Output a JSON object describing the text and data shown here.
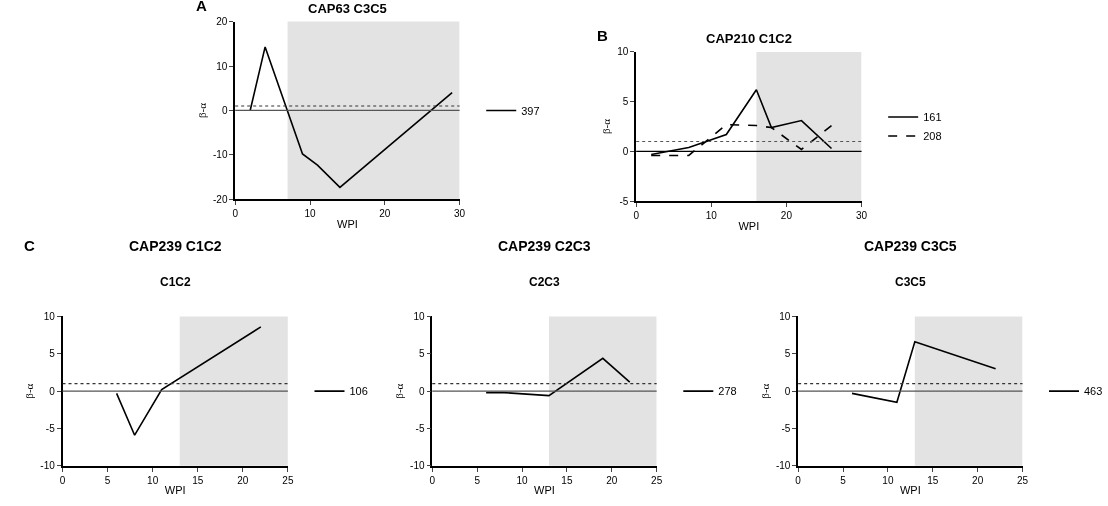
{
  "chart_data": [
    {
      "type": "line",
      "title": "CAP63 C3C5",
      "xlabel": "WPI",
      "ylabel": "β-α",
      "annotations": [
        "A"
      ],
      "series": [
        {
          "name": "397",
          "color": "#000000",
          "line_style": "solid",
          "x": [
            2,
            4,
            9,
            11,
            14,
            29
          ],
          "values": [
            0,
            14.3,
            -9.8,
            -12.3,
            -17.3,
            4
          ]
        }
      ],
      "xlim": [
        0,
        30
      ],
      "xticks": [
        0,
        10,
        20,
        30
      ],
      "ylim": [
        -20,
        20
      ],
      "yticks": [
        -20,
        -10,
        0,
        10,
        20
      ],
      "bands": [
        {
          "axis": "x",
          "from": 7,
          "to": 30,
          "color": "#e3e3e3"
        }
      ],
      "ref_lines": [
        {
          "axis": "y",
          "value": 1,
          "color": "#333333",
          "line_style": "dotted"
        },
        {
          "axis": "y",
          "value": 0,
          "color": "#555555",
          "line_style": "solid"
        }
      ],
      "legend": "right",
      "grid": false,
      "marker": "none"
    },
    {
      "type": "line",
      "title": "CAP210 C1C2",
      "xlabel": "WPI",
      "ylabel": "β-α",
      "annotations": [
        "B"
      ],
      "series": [
        {
          "name": "161",
          "color": "#000000",
          "line_style": "solid",
          "x": [
            2,
            7,
            12,
            16,
            18,
            22,
            26
          ],
          "values": [
            -0.3,
            0.4,
            1.7,
            6.2,
            2.4,
            3.1,
            0.3
          ]
        },
        {
          "name": "208",
          "color": "#000000",
          "line_style": "dashed",
          "x": [
            2,
            7,
            12,
            16,
            18,
            22,
            26
          ],
          "values": [
            -0.4,
            -0.4,
            2.7,
            2.6,
            2.4,
            0.2,
            2.6
          ]
        }
      ],
      "xlim": [
        0,
        30
      ],
      "xticks": [
        0,
        10,
        20,
        30
      ],
      "ylim": [
        -5,
        10
      ],
      "yticks": [
        -5,
        0,
        5,
        10
      ],
      "bands": [
        {
          "axis": "x",
          "from": 16,
          "to": 30,
          "color": "#e3e3e3"
        }
      ],
      "ref_lines": [
        {
          "axis": "y",
          "value": 1,
          "color": "#555555",
          "line_style": "dotted"
        },
        {
          "axis": "y",
          "value": 0,
          "color": "#000000",
          "line_style": "solid"
        }
      ],
      "legend": "right",
      "grid": false,
      "marker": "none"
    },
    {
      "type": "line",
      "title": "CAP239 C1C2",
      "subtitle": "C1C2",
      "xlabel": "WPI",
      "ylabel": "β-α",
      "annotations": [
        "C"
      ],
      "series": [
        {
          "name": "106",
          "color": "#000000",
          "line_style": "solid",
          "x": [
            6,
            8,
            11,
            22
          ],
          "values": [
            -0.3,
            -5.9,
            0.2,
            8.6
          ]
        }
      ],
      "xlim": [
        0,
        25
      ],
      "xticks": [
        0,
        5,
        10,
        15,
        20,
        25
      ],
      "ylim": [
        -10,
        10
      ],
      "yticks": [
        -10,
        -5,
        0,
        5,
        10
      ],
      "bands": [
        {
          "axis": "x",
          "from": 13,
          "to": 25,
          "color": "#e3e3e3"
        }
      ],
      "ref_lines": [
        {
          "axis": "y",
          "value": 1,
          "color": "#333333",
          "line_style": "dotted"
        },
        {
          "axis": "y",
          "value": 0,
          "color": "#555555",
          "line_style": "solid"
        }
      ],
      "legend": "right",
      "grid": false,
      "marker": "none"
    },
    {
      "type": "line",
      "title": "CAP239 C2C3",
      "subtitle": "C2C3",
      "xlabel": "WPI",
      "ylabel": "β-α",
      "series": [
        {
          "name": "278",
          "color": "#000000",
          "line_style": "solid",
          "x": [
            6,
            8,
            13,
            19,
            22
          ],
          "values": [
            -0.2,
            -0.2,
            -0.6,
            4.4,
            1.2
          ]
        }
      ],
      "xlim": [
        0,
        25
      ],
      "xticks": [
        0,
        5,
        10,
        15,
        20,
        25
      ],
      "ylim": [
        -10,
        10
      ],
      "yticks": [
        -10,
        -5,
        0,
        5,
        10
      ],
      "bands": [
        {
          "axis": "x",
          "from": 13,
          "to": 25,
          "color": "#e3e3e3"
        }
      ],
      "ref_lines": [
        {
          "axis": "y",
          "value": 1,
          "color": "#333333",
          "line_style": "dotted"
        },
        {
          "axis": "y",
          "value": 0,
          "color": "#555555",
          "line_style": "solid"
        }
      ],
      "legend": "right",
      "grid": false,
      "marker": "none"
    },
    {
      "type": "line",
      "title": "CAP239 C3C5",
      "subtitle": "C3C5",
      "xlabel": "WPI",
      "ylabel": "β-α",
      "series": [
        {
          "name": "463",
          "color": "#000000",
          "line_style": "solid",
          "x": [
            6,
            11,
            13,
            22
          ],
          "values": [
            -0.3,
            -1.5,
            6.6,
            3
          ]
        }
      ],
      "xlim": [
        0,
        25
      ],
      "xticks": [
        0,
        5,
        10,
        15,
        20,
        25
      ],
      "ylim": [
        -10,
        10
      ],
      "yticks": [
        -10,
        -5,
        0,
        5,
        10
      ],
      "bands": [
        {
          "axis": "x",
          "from": 13,
          "to": 25,
          "color": "#e3e3e3"
        }
      ],
      "ref_lines": [
        {
          "axis": "y",
          "value": 1,
          "color": "#333333",
          "line_style": "dotted"
        },
        {
          "axis": "y",
          "value": 0,
          "color": "#555555",
          "line_style": "solid"
        }
      ],
      "legend": "right",
      "grid": false,
      "marker": "none"
    }
  ]
}
